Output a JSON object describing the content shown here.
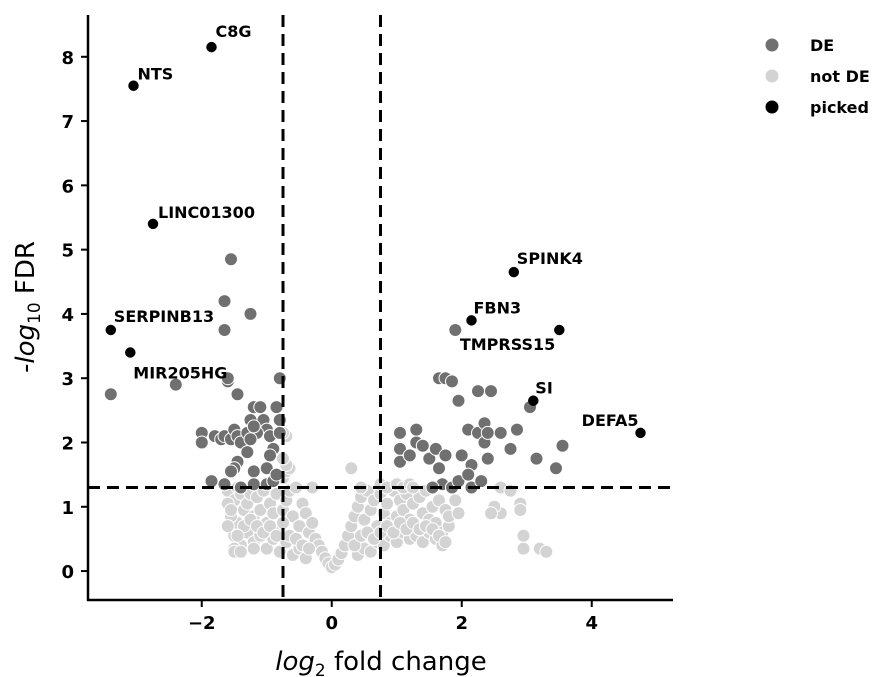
{
  "chart_data": {
    "type": "scatter",
    "title": "",
    "xlabel": {
      "pre": "log",
      "sub": "2",
      "post": " fold change"
    },
    "ylabel": {
      "pre": "-log",
      "sub": "10",
      "post": " FDR"
    },
    "xlim": [
      -3.75,
      5.25
    ],
    "ylim": [
      -0.45,
      8.65
    ],
    "xticks": [
      -2,
      0,
      2,
      4
    ],
    "xtick_labels": [
      "−2",
      "0",
      "2",
      "4"
    ],
    "yticks": [
      0,
      1,
      2,
      3,
      4,
      5,
      6,
      7,
      8
    ],
    "ytick_labels": [
      "0",
      "1",
      "2",
      "3",
      "4",
      "5",
      "6",
      "7",
      "8"
    ],
    "thresholds": {
      "fold_change_low": -0.75,
      "fold_change_high": 0.75,
      "fdr_line": 1.3
    },
    "legend": {
      "placement": "top-right outside",
      "entries": [
        {
          "label": "DE",
          "color": "#707070"
        },
        {
          "label": "not DE",
          "color": "#d3d3d3"
        },
        {
          "label": "picked",
          "color": "#000000"
        }
      ]
    },
    "colors": {
      "DE": "#707070",
      "not_DE": "#d3d3d3",
      "picked": "#000000"
    },
    "series": [
      {
        "name": "not DE",
        "points": [
          [
            -1.6,
            1.25
          ],
          [
            -1.5,
            1.1
          ],
          [
            -1.45,
            1.3
          ],
          [
            -1.4,
            1.2
          ],
          [
            -1.35,
            0.95
          ],
          [
            -1.3,
            1.05
          ],
          [
            -1.25,
            1.2
          ],
          [
            -1.2,
            0.85
          ],
          [
            -1.15,
            1.15
          ],
          [
            -1.1,
            0.95
          ],
          [
            -1.05,
            1.25
          ],
          [
            -1.0,
            0.75
          ],
          [
            -0.95,
            1.05
          ],
          [
            -0.9,
            0.9
          ],
          [
            -0.85,
            1.2
          ],
          [
            -0.8,
            0.65
          ],
          [
            -0.75,
            0.95
          ],
          [
            -0.7,
            1.1
          ],
          [
            -0.65,
            1.25
          ],
          [
            -0.6,
            0.85
          ],
          [
            -0.55,
            1.3
          ],
          [
            -0.5,
            0.7
          ],
          [
            -0.45,
            1.05
          ],
          [
            -0.4,
            0.9
          ],
          [
            -0.35,
            0.6
          ],
          [
            -0.3,
            0.75
          ],
          [
            -0.25,
            0.5
          ],
          [
            -0.2,
            0.4
          ],
          [
            -0.15,
            0.3
          ],
          [
            -0.1,
            0.2
          ],
          [
            -0.05,
            0.12
          ],
          [
            0.0,
            0.06
          ],
          [
            0.05,
            0.1
          ],
          [
            0.1,
            0.18
          ],
          [
            0.15,
            0.28
          ],
          [
            0.2,
            0.4
          ],
          [
            0.25,
            0.55
          ],
          [
            0.3,
            0.7
          ],
          [
            0.35,
            0.85
          ],
          [
            0.4,
            1.0
          ],
          [
            0.45,
            1.15
          ],
          [
            0.5,
            0.8
          ],
          [
            0.55,
            1.25
          ],
          [
            0.6,
            0.95
          ],
          [
            0.65,
            1.1
          ],
          [
            0.7,
            0.7
          ],
          [
            0.75,
            1.2
          ],
          [
            0.8,
            0.9
          ],
          [
            0.85,
            1.05
          ],
          [
            0.9,
            0.75
          ],
          [
            0.95,
            1.25
          ],
          [
            1.0,
            0.85
          ],
          [
            1.05,
            1.1
          ],
          [
            1.1,
            0.95
          ],
          [
            1.15,
            1.2
          ],
          [
            1.2,
            0.8
          ],
          [
            1.25,
            1.05
          ],
          [
            1.3,
            0.7
          ],
          [
            1.35,
            1.15
          ],
          [
            1.4,
            0.9
          ],
          [
            1.45,
            1.25
          ],
          [
            1.5,
            0.8
          ],
          [
            1.55,
            1.0
          ],
          [
            1.6,
            0.75
          ],
          [
            1.65,
            1.1
          ],
          [
            1.7,
            0.6
          ],
          [
            1.75,
            0.95
          ],
          [
            1.8,
            0.7
          ],
          [
            -1.5,
            0.55
          ],
          [
            -1.4,
            0.4
          ],
          [
            -1.3,
            0.6
          ],
          [
            -1.2,
            0.45
          ],
          [
            -1.1,
            0.55
          ],
          [
            -1.0,
            0.35
          ],
          [
            -0.9,
            0.5
          ],
          [
            -0.8,
            0.3
          ],
          [
            -0.7,
            0.45
          ],
          [
            -0.6,
            0.25
          ],
          [
            -0.5,
            0.35
          ],
          [
            -0.4,
            0.2
          ],
          [
            0.4,
            0.25
          ],
          [
            0.5,
            0.35
          ],
          [
            0.6,
            0.3
          ],
          [
            0.7,
            0.45
          ],
          [
            0.8,
            0.4
          ],
          [
            0.9,
            0.55
          ],
          [
            1.0,
            0.45
          ],
          [
            1.1,
            0.6
          ],
          [
            1.2,
            0.5
          ],
          [
            1.3,
            0.55
          ],
          [
            1.4,
            0.45
          ],
          [
            1.5,
            0.6
          ],
          [
            1.6,
            0.5
          ],
          [
            1.7,
            0.4
          ],
          [
            -1.45,
            0.75
          ],
          [
            -1.35,
            0.7
          ],
          [
            -1.25,
            0.8
          ],
          [
            -1.15,
            0.7
          ],
          [
            -1.05,
            0.6
          ],
          [
            -0.95,
            0.7
          ],
          [
            -0.85,
            0.55
          ],
          [
            -0.75,
            0.75
          ],
          [
            -0.65,
            0.55
          ],
          [
            -0.55,
            0.5
          ],
          [
            -0.45,
            0.4
          ],
          [
            -0.35,
            0.35
          ],
          [
            0.35,
            0.4
          ],
          [
            0.45,
            0.55
          ],
          [
            0.55,
            0.6
          ],
          [
            0.65,
            0.5
          ],
          [
            0.75,
            0.6
          ],
          [
            0.85,
            0.7
          ],
          [
            0.95,
            0.6
          ],
          [
            1.05,
            0.75
          ],
          [
            1.15,
            0.65
          ],
          [
            1.25,
            0.75
          ],
          [
            1.35,
            0.65
          ],
          [
            1.45,
            0.7
          ],
          [
            1.55,
            0.65
          ],
          [
            1.65,
            0.55
          ],
          [
            1.75,
            0.45
          ],
          [
            1.8,
            0.85
          ],
          [
            1.9,
            1.1
          ],
          [
            1.95,
            0.9
          ],
          [
            -1.55,
            0.85
          ],
          [
            -1.5,
            0.35
          ],
          [
            -1.45,
            0.55
          ],
          [
            -1.6,
            0.7
          ],
          [
            -1.6,
            1.05
          ],
          [
            -1.55,
            0.95
          ],
          [
            -0.75,
            1.45
          ],
          [
            -0.7,
            1.55
          ],
          [
            -0.65,
            1.6
          ],
          [
            -0.7,
            1.65
          ],
          [
            -0.75,
            1.75
          ],
          [
            -0.7,
            2.1
          ],
          [
            -0.75,
            2.15
          ],
          [
            -0.3,
            1.3
          ],
          [
            0.3,
            1.6
          ],
          [
            0.45,
            1.3
          ],
          [
            0.75,
            1.35
          ],
          [
            0.85,
            1.3
          ],
          [
            1.0,
            1.35
          ],
          [
            1.1,
            1.3
          ],
          [
            1.2,
            1.35
          ],
          [
            1.25,
            1.3
          ],
          [
            2.6,
            1.3
          ],
          [
            2.6,
            0.9
          ],
          [
            2.5,
            1.0
          ],
          [
            2.45,
            0.9
          ],
          [
            2.75,
            1.25
          ],
          [
            2.9,
            1.05
          ],
          [
            2.9,
            0.95
          ],
          [
            2.95,
            0.55
          ],
          [
            2.95,
            0.35
          ],
          [
            3.2,
            0.35
          ],
          [
            3.3,
            0.3
          ],
          [
            -1.5,
            0.3
          ],
          [
            -1.4,
            0.3
          ],
          [
            -1.2,
            0.35
          ]
        ]
      },
      {
        "name": "DE",
        "points": [
          [
            -2.0,
            2.15
          ],
          [
            -2.0,
            2.0
          ],
          [
            -1.8,
            2.1
          ],
          [
            -1.7,
            2.05
          ],
          [
            -1.65,
            2.1
          ],
          [
            -1.55,
            2.05
          ],
          [
            -1.5,
            2.2
          ],
          [
            -1.45,
            2.1
          ],
          [
            -1.4,
            2.0
          ],
          [
            -1.3,
            2.15
          ],
          [
            -1.25,
            2.35
          ],
          [
            -1.2,
            2.55
          ],
          [
            -1.1,
            2.55
          ],
          [
            -1.05,
            2.35
          ],
          [
            -1.0,
            2.2
          ],
          [
            -0.95,
            2.1
          ],
          [
            -0.9,
            1.9
          ],
          [
            -0.85,
            2.55
          ],
          [
            -0.8,
            2.35
          ],
          [
            -0.8,
            2.15
          ],
          [
            -0.8,
            3.0
          ],
          [
            -1.15,
            2.15
          ],
          [
            -1.2,
            2.25
          ],
          [
            -1.25,
            2.05
          ],
          [
            -1.3,
            1.85
          ],
          [
            -1.45,
            1.7
          ],
          [
            -1.5,
            1.6
          ],
          [
            -1.55,
            1.55
          ],
          [
            -1.2,
            1.55
          ],
          [
            -1.0,
            1.6
          ],
          [
            -0.95,
            1.8
          ],
          [
            -1.85,
            1.4
          ],
          [
            -1.65,
            1.35
          ],
          [
            -1.4,
            1.3
          ],
          [
            -1.2,
            1.35
          ],
          [
            -1.0,
            1.35
          ],
          [
            -0.9,
            1.4
          ],
          [
            -0.85,
            1.5
          ],
          [
            -1.6,
            2.95
          ],
          [
            -1.45,
            2.75
          ],
          [
            -1.6,
            3.0
          ],
          [
            -1.55,
            4.85
          ],
          [
            -1.65,
            4.2
          ],
          [
            -1.65,
            3.75
          ],
          [
            -1.25,
            4.0
          ],
          [
            -2.4,
            2.9
          ],
          [
            -3.4,
            2.75
          ],
          [
            1.05,
            2.15
          ],
          [
            1.05,
            1.9
          ],
          [
            1.05,
            1.7
          ],
          [
            1.2,
            1.8
          ],
          [
            1.3,
            2.0
          ],
          [
            1.3,
            2.2
          ],
          [
            1.4,
            1.95
          ],
          [
            1.5,
            1.75
          ],
          [
            1.6,
            1.9
          ],
          [
            1.65,
            1.6
          ],
          [
            1.7,
            1.35
          ],
          [
            1.55,
            1.3
          ],
          [
            1.65,
            3.0
          ],
          [
            1.75,
            3.0
          ],
          [
            1.85,
            2.95
          ],
          [
            1.95,
            2.65
          ],
          [
            1.9,
            3.75
          ],
          [
            2.1,
            2.2
          ],
          [
            2.15,
            1.65
          ],
          [
            2.25,
            2.15
          ],
          [
            2.25,
            2.8
          ],
          [
            2.35,
            2.3
          ],
          [
            2.35,
            2.0
          ],
          [
            2.4,
            2.15
          ],
          [
            2.45,
            2.8
          ],
          [
            2.4,
            1.75
          ],
          [
            2.6,
            2.15
          ],
          [
            2.75,
            1.9
          ],
          [
            2.85,
            2.2
          ],
          [
            3.05,
            2.55
          ],
          [
            3.15,
            1.75
          ],
          [
            3.55,
            1.95
          ],
          [
            3.45,
            1.6
          ],
          [
            1.85,
            1.3
          ],
          [
            1.95,
            1.4
          ],
          [
            2.1,
            1.5
          ],
          [
            2.15,
            1.3
          ],
          [
            2.3,
            1.4
          ],
          [
            2.0,
            1.8
          ],
          [
            1.75,
            1.8
          ]
        ]
      },
      {
        "name": "picked",
        "points": [
          {
            "x": -1.85,
            "y": 8.15,
            "label": "C8G"
          },
          {
            "x": -3.05,
            "y": 7.55,
            "label": "NTS"
          },
          {
            "x": -2.75,
            "y": 5.4,
            "label": "LINC01300"
          },
          {
            "x": -3.4,
            "y": 3.75,
            "label": "SERPINB13"
          },
          {
            "x": -3.1,
            "y": 3.4,
            "label": "MIR205HG"
          },
          {
            "x": 2.8,
            "y": 4.65,
            "label": "SPINK4"
          },
          {
            "x": 2.15,
            "y": 3.9,
            "label": "FBN3"
          },
          {
            "x": 3.5,
            "y": 3.75,
            "label": "TMPRSS15"
          },
          {
            "x": 3.1,
            "y": 2.65,
            "label": "SI"
          },
          {
            "x": 4.75,
            "y": 2.15,
            "label": "DEFA5"
          }
        ]
      }
    ]
  }
}
